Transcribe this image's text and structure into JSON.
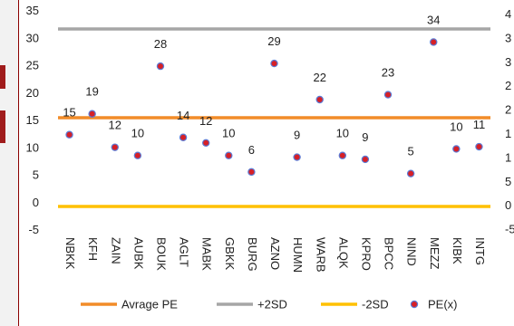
{
  "chart_data": {
    "type": "scatter",
    "categories": [
      "NBKK",
      "KFH",
      "ZAIN",
      "AUBK",
      "BOUK",
      "AGLT",
      "MABK",
      "GBKK",
      "BURG",
      "AZNO",
      "HUMN",
      "WARB",
      "ALQK",
      "KPRO",
      "BPCC",
      "NIND",
      "MEZZ",
      "KIBK",
      "INTG"
    ],
    "values": [
      12.4,
      16.2,
      10.1,
      8.6,
      24.9,
      11.9,
      10.9,
      8.6,
      5.6,
      25.4,
      8.3,
      18.8,
      8.6,
      7.9,
      19.7,
      5.3,
      29.3,
      9.8,
      10.2
    ],
    "data_labels": [
      "15",
      "19",
      "12",
      "10",
      "28",
      "14",
      "12",
      "10",
      "6",
      "29",
      "9",
      "22",
      "10",
      "9",
      "23",
      "5",
      "34",
      "10",
      "11"
    ],
    "reference_lines": [
      {
        "name": "Avrage PE",
        "value": 15.5,
        "color": "#f28c28"
      },
      {
        "name": "+2SD",
        "value": 31.7,
        "color": "#a6a6a6"
      },
      {
        "name": "-2SD",
        "value": -0.7,
        "color": "#ffc000"
      }
    ],
    "series": [
      {
        "name": "PE(x)",
        "color": "#d62027",
        "edge": "#5b7bd5"
      }
    ],
    "ylim": [
      -5,
      35
    ],
    "yticks": [
      "35",
      "30",
      "25",
      "20",
      "15",
      "10",
      "5",
      "0",
      "-5"
    ],
    "right_axis_partial": [
      "4",
      "3",
      "3",
      "2",
      "2",
      "1",
      "1",
      "5",
      "0",
      "-5"
    ],
    "legend_position": "bottom",
    "grid": false
  }
}
